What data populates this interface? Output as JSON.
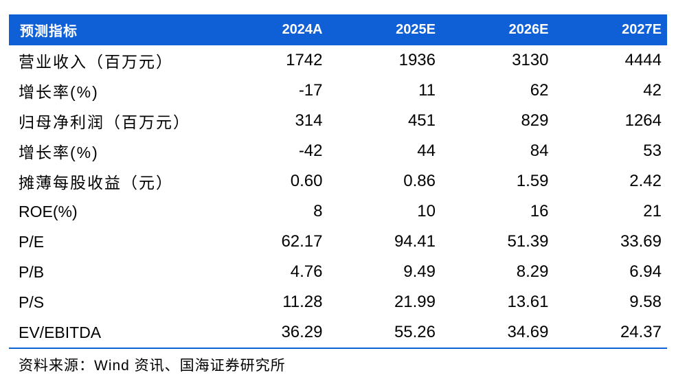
{
  "table": {
    "header": {
      "label": "预测指标",
      "years": [
        "2024A",
        "2025E",
        "2026E",
        "2027E"
      ]
    },
    "rows": [
      {
        "label": "营业收入（百万元）",
        "values": [
          "1742",
          "1936",
          "3130",
          "4444"
        ]
      },
      {
        "label": "增长率(%)",
        "values": [
          "-17",
          "11",
          "62",
          "42"
        ]
      },
      {
        "label": "归母净利润（百万元）",
        "values": [
          "314",
          "451",
          "829",
          "1264"
        ]
      },
      {
        "label": "增长率(%)",
        "values": [
          "-42",
          "44",
          "84",
          "53"
        ]
      },
      {
        "label": "摊薄每股收益（元）",
        "values": [
          "0.60",
          "0.86",
          "1.59",
          "2.42"
        ]
      },
      {
        "label": "ROE(%)",
        "values": [
          "8",
          "10",
          "16",
          "21"
        ]
      },
      {
        "label": "P/E",
        "values": [
          "62.17",
          "94.41",
          "51.39",
          "33.69"
        ]
      },
      {
        "label": "P/B",
        "values": [
          "4.76",
          "9.49",
          "8.29",
          "6.94"
        ]
      },
      {
        "label": "P/S",
        "values": [
          "11.28",
          "21.99",
          "13.61",
          "9.58"
        ]
      },
      {
        "label": "EV/EBITDA",
        "values": [
          "36.29",
          "55.26",
          "34.69",
          "24.37"
        ]
      }
    ]
  },
  "source": "资料来源：Wind 资讯、国海证券研究所",
  "colors": {
    "header_bg": "#0f5fd7",
    "header_text": "#ffffff",
    "rule": "#0f5fd7"
  }
}
